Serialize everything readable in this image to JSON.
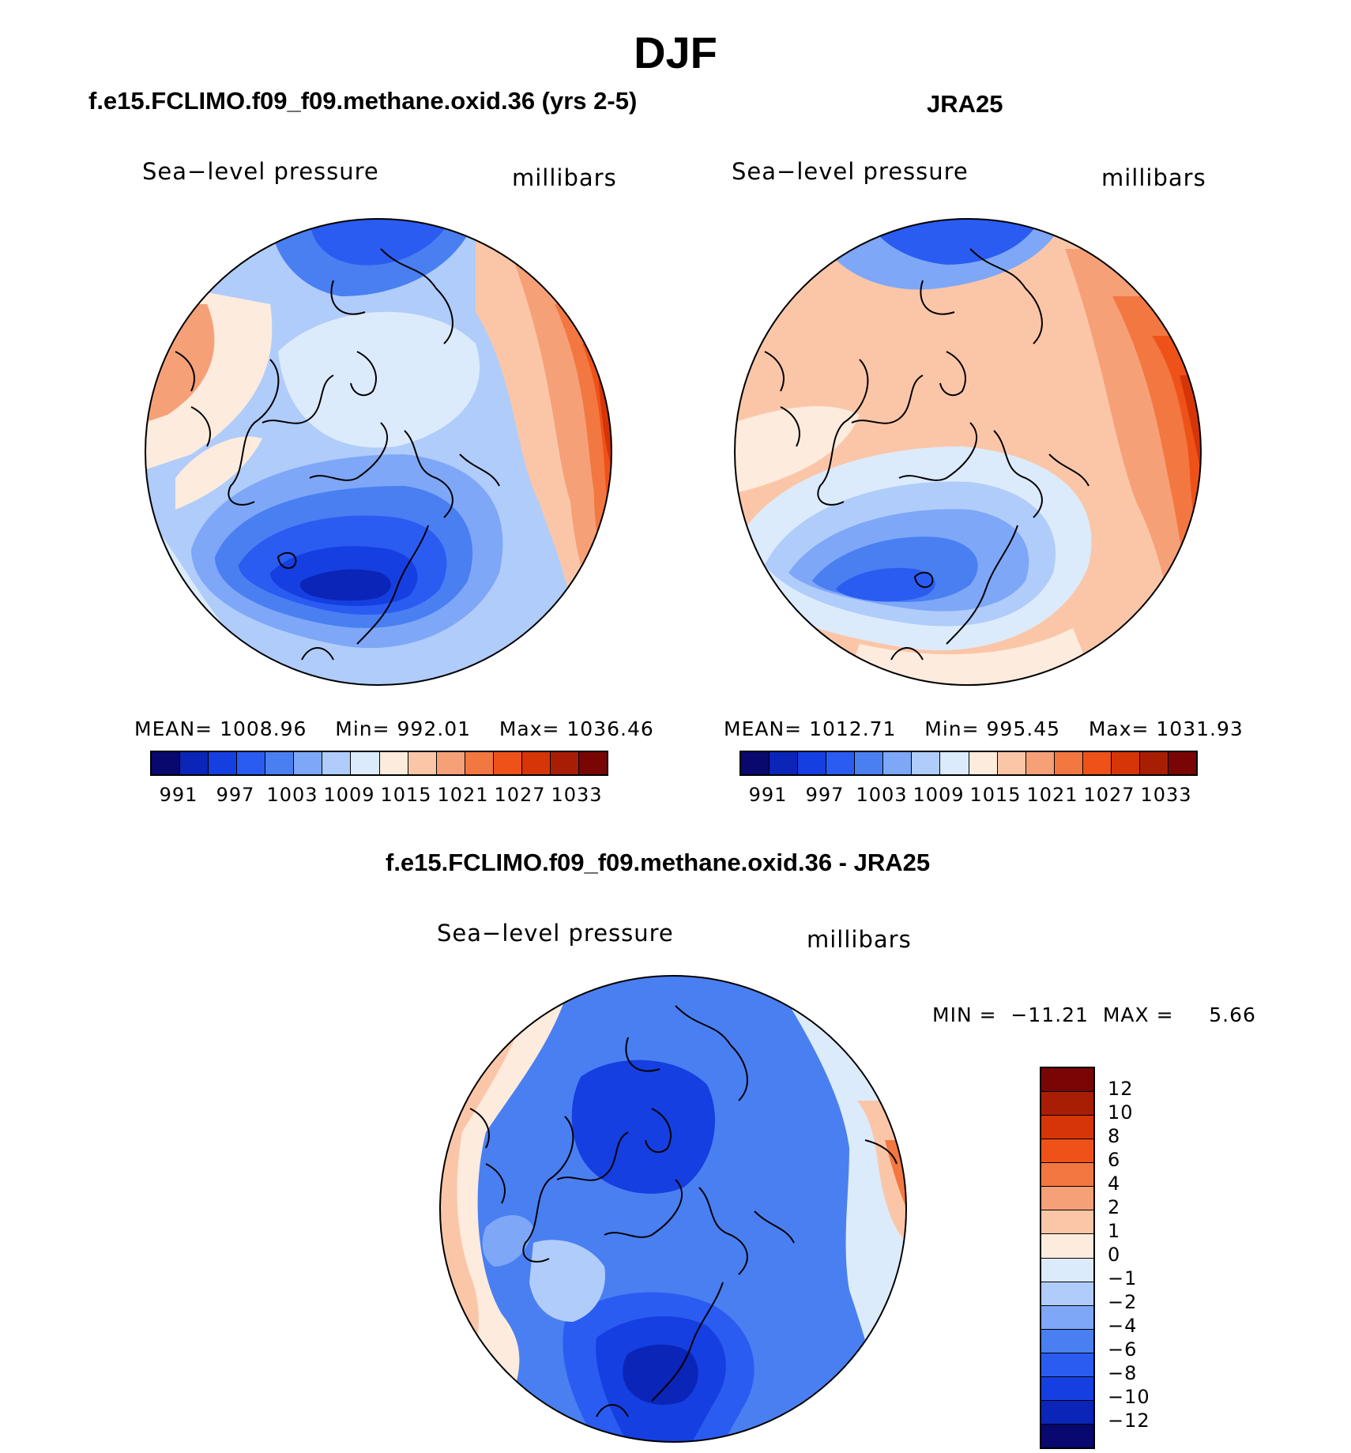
{
  "title": "DJF",
  "palette": [
    "#08086e",
    "#0a25b8",
    "#153fe0",
    "#2a5cf2",
    "#4a7ff2",
    "#7ea7f7",
    "#b0ccfa",
    "#dcebfb",
    "#fdebdd",
    "#fbc6a8",
    "#f6a078",
    "#f37741",
    "#ef5218",
    "#d63508",
    "#a81e04",
    "#7a0505"
  ],
  "diff_palette": [
    "#08086e",
    "#0a25b8",
    "#153fe0",
    "#2a5cf2",
    "#4a7ff2",
    "#7ea7f7",
    "#b0ccfa",
    "#dcebfb",
    "#fdebdd",
    "#fbc6a8",
    "#f6a078",
    "#f37741",
    "#ef5218",
    "#d63508",
    "#a81e04",
    "#7a0505"
  ],
  "panels": {
    "model": {
      "title": "f.e15.FCLIMO.f09_f09.methane.oxid.36 (yrs 2-5)",
      "field_label": "Sea−level pressure",
      "units": "millibars",
      "stats": {
        "mean_label": "MEAN=",
        "mean": "1008.96",
        "min_label": "Min=",
        "min": "992.01",
        "max_label": "Max=",
        "max": "1036.46"
      },
      "ticks": [
        "991",
        "997",
        "1003",
        "1009",
        "1015",
        "1021",
        "1027",
        "1033"
      ]
    },
    "obs": {
      "title": "JRA25",
      "field_label": "Sea−level pressure",
      "units": "millibars",
      "stats": {
        "mean_label": "MEAN=",
        "mean": "1012.71",
        "min_label": "Min=",
        "min": "995.45",
        "max_label": "Max=",
        "max": "1031.93"
      },
      "ticks": [
        "991",
        "997",
        "1003",
        "1009",
        "1015",
        "1021",
        "1027",
        "1033"
      ]
    },
    "diff": {
      "title": "f.e15.FCLIMO.f09_f09.methane.oxid.36 - JRA25",
      "field_label": "Sea−level pressure",
      "units": "millibars",
      "minmax": "MIN =  −11.21  MAX =     5.66",
      "ticks": [
        "12",
        "10",
        "8",
        "6",
        "4",
        "2",
        "1",
        "0",
        "−1",
        "−2",
        "−4",
        "−6",
        "−8",
        "−10",
        "−12"
      ]
    }
  }
}
